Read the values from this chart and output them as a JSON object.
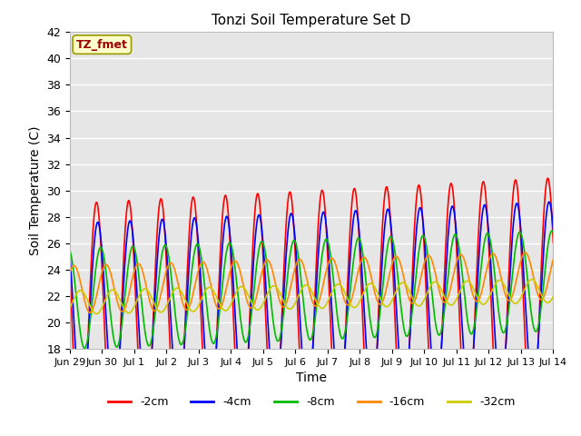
{
  "title": "Tonzi Soil Temperature Set D",
  "xlabel": "Time",
  "ylabel": "Soil Temperature (C)",
  "ylim": [
    18,
    42
  ],
  "series": [
    {
      "label": "-2cm",
      "color": "#ff0000",
      "amplitude": 9.5,
      "base": 19.5,
      "phase_lag": 0.0,
      "trend": 0.13
    },
    {
      "label": "-4cm",
      "color": "#0000ff",
      "amplitude": 7.0,
      "base": 20.5,
      "phase_lag": 0.04,
      "trend": 0.11
    },
    {
      "label": "-8cm",
      "color": "#00bb00",
      "amplitude": 3.8,
      "base": 21.8,
      "phase_lag": 0.13,
      "trend": 0.09
    },
    {
      "label": "-16cm",
      "color": "#ff8800",
      "amplitude": 1.8,
      "base": 22.5,
      "phase_lag": 0.3,
      "trend": 0.07
    },
    {
      "label": "-32cm",
      "color": "#cccc00",
      "amplitude": 0.9,
      "base": 21.5,
      "phase_lag": 0.5,
      "trend": 0.06
    }
  ],
  "xtick_labels": [
    "Jun 29",
    "Jun 30",
    "Jul 1",
    "Jul 2",
    "Jul 3",
    "Jul 4",
    "Jul 5",
    "Jul 6",
    "Jul 7",
    "Jul 8",
    "Jul 9",
    "Jul 10",
    "Jul 11",
    "Jul 12",
    "Jul 13",
    "Jul 14"
  ],
  "annotation_text": "TZ_fmet",
  "bg_color": "#e6e6e6",
  "fig_color": "#ffffff",
  "linewidth": 1.2,
  "n_points_per_day": 144,
  "n_days": 15,
  "peak_time": 0.58
}
